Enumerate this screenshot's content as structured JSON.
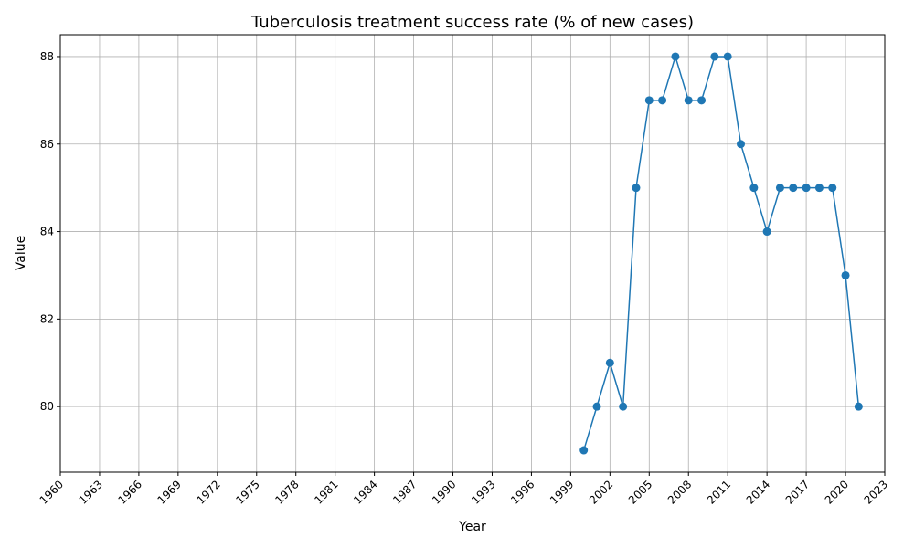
{
  "chart_data": {
    "type": "line",
    "title": "Tuberculosis treatment success rate (% of new cases)",
    "xlabel": "Year",
    "ylabel": "Value",
    "xlim": [
      1960,
      2023
    ],
    "ylim": [
      78.5,
      88.5
    ],
    "x_ticks": [
      1960,
      1963,
      1966,
      1969,
      1972,
      1975,
      1978,
      1981,
      1984,
      1987,
      1990,
      1993,
      1996,
      1999,
      2002,
      2005,
      2008,
      2011,
      2014,
      2017,
      2020,
      2023
    ],
    "y_ticks": [
      80,
      82,
      84,
      86,
      88
    ],
    "grid": true,
    "marker": "circle",
    "line_color": "#1f77b4",
    "series": [
      {
        "x": [
          2000,
          2001,
          2002,
          2003,
          2004,
          2005,
          2006,
          2007,
          2008,
          2009,
          2010,
          2011,
          2012,
          2013,
          2014,
          2015,
          2016,
          2017,
          2018,
          2019,
          2020,
          2021
        ],
        "values": [
          79,
          80,
          81,
          80,
          85,
          87,
          87,
          88,
          87,
          87,
          88,
          88,
          86,
          85,
          84,
          85,
          85,
          85,
          85,
          85,
          83,
          80
        ]
      }
    ]
  }
}
